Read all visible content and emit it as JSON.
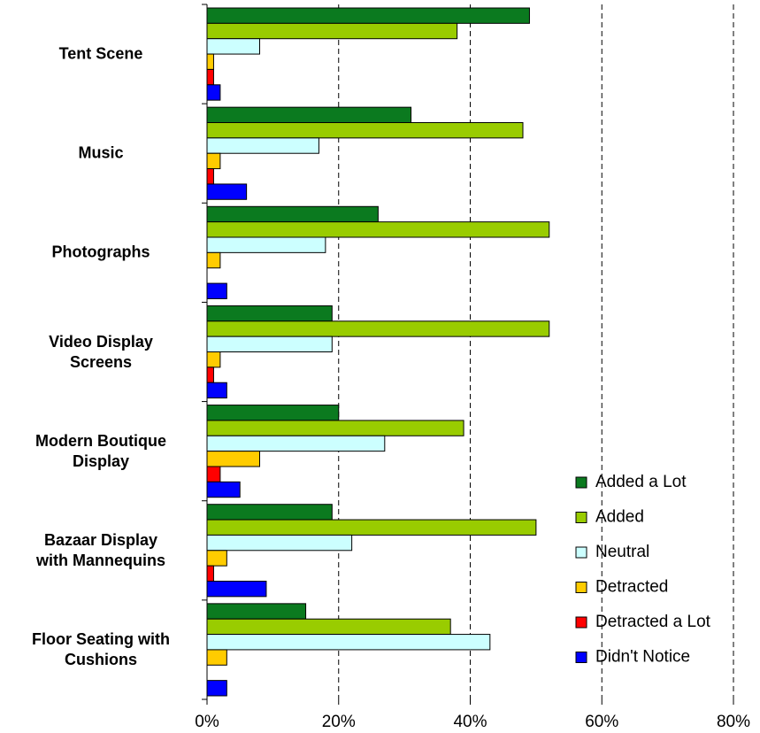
{
  "chart_data": {
    "type": "bar",
    "orientation": "horizontal",
    "categories": [
      "Tent Scene",
      "Music",
      "Photographs",
      "Video Display\nScreens",
      "Modern Boutique\nDisplay",
      "Bazaar Display\nwith Mannequins",
      "Floor Seating with\nCushions"
    ],
    "series": [
      {
        "name": "Added a Lot",
        "color": "#0b7a1f",
        "values": [
          49,
          31,
          26,
          19,
          20,
          19,
          15
        ]
      },
      {
        "name": "Added",
        "color": "#99cc00",
        "values": [
          38,
          48,
          52,
          52,
          39,
          50,
          37
        ]
      },
      {
        "name": "Neutral",
        "color": "#ccffff",
        "values": [
          8,
          17,
          18,
          19,
          27,
          22,
          43
        ]
      },
      {
        "name": "Detracted",
        "color": "#ffcc00",
        "values": [
          1,
          2,
          2,
          2,
          8,
          3,
          3
        ]
      },
      {
        "name": "Detracted a Lot",
        "color": "#ff0000",
        "values": [
          1,
          1,
          0,
          1,
          2,
          1,
          0
        ]
      },
      {
        "name": "Didn't Notice",
        "color": "#0000ff",
        "values": [
          2,
          6,
          3,
          3,
          5,
          9,
          3
        ]
      }
    ],
    "xlim": [
      0,
      80
    ],
    "xticks": [
      {
        "value": 0,
        "label": "0%"
      },
      {
        "value": 20,
        "label": "20%"
      },
      {
        "value": 40,
        "label": "40%"
      },
      {
        "value": 60,
        "label": "60%"
      },
      {
        "value": 80,
        "label": "80%"
      }
    ],
    "grid": true,
    "legend": "lower right"
  }
}
